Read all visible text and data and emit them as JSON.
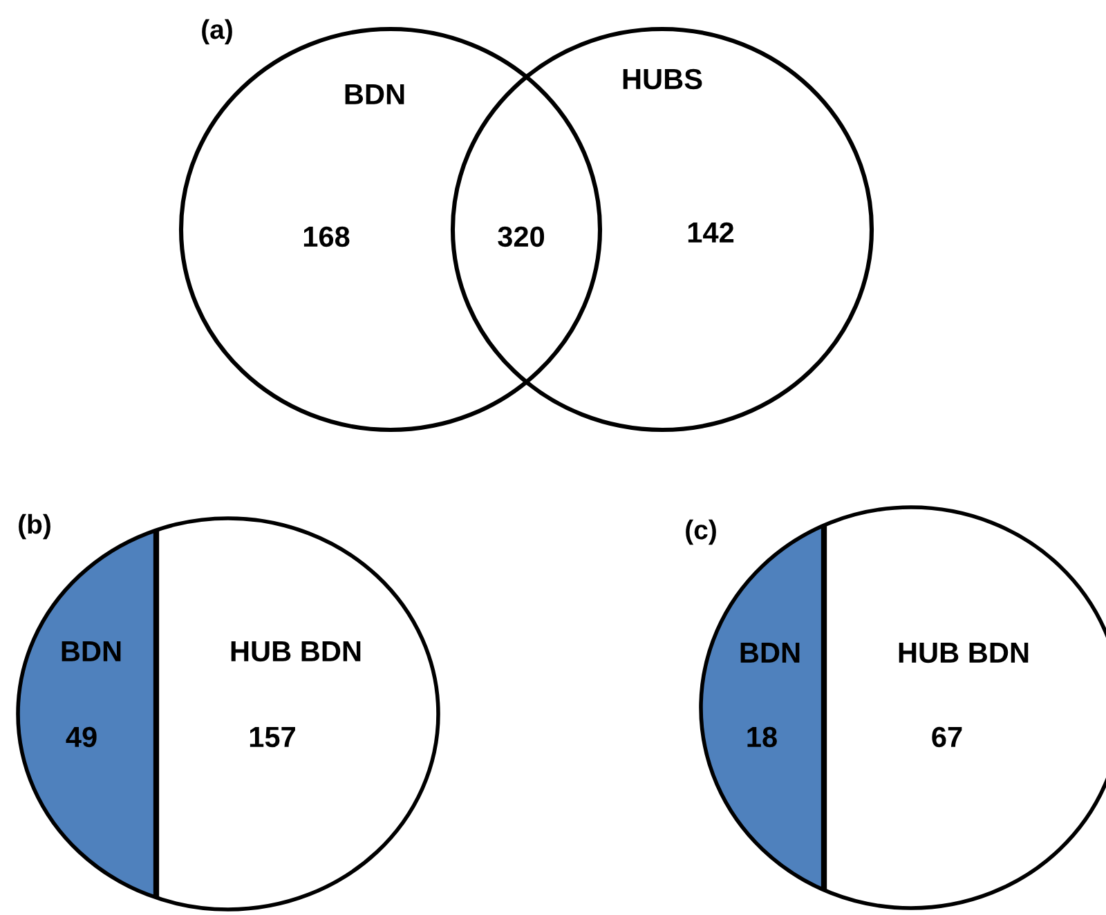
{
  "chart_data": [
    {
      "type": "other",
      "title": "(a)",
      "categories": [
        "BDN",
        null,
        "HUBS"
      ],
      "values": [
        168,
        320,
        142
      ],
      "data_labels": true
    },
    {
      "type": "other",
      "title": "(b)",
      "categories": [
        "BDN",
        "HUB BDN"
      ],
      "values": [
        49,
        157
      ],
      "colors": [
        "#4f81bd",
        "#ffffff"
      ],
      "data_labels": true
    },
    {
      "type": "other",
      "title": "(c)",
      "categories": [
        "BDN",
        "HUB BDN"
      ],
      "values": [
        18,
        67
      ],
      "colors": [
        "#4f81bd",
        "#ffffff"
      ],
      "data_labels": true
    }
  ]
}
